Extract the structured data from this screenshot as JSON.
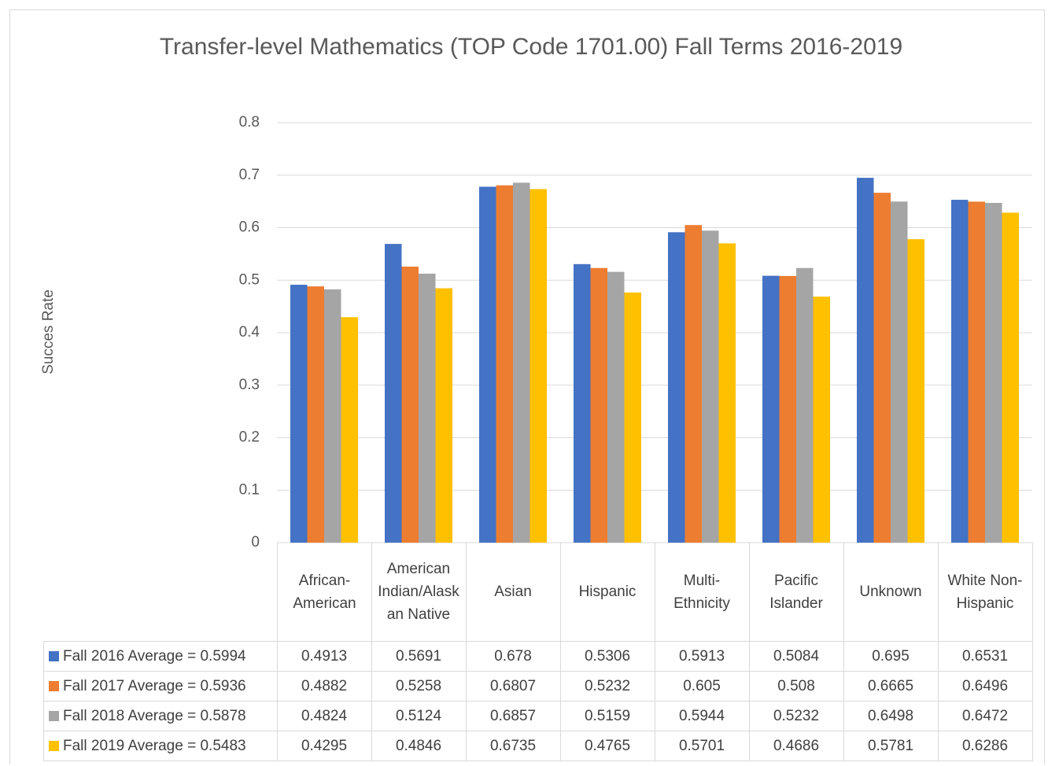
{
  "chart_data": {
    "type": "bar",
    "title": "Transfer-level Mathematics (TOP Code 1701.00) Fall Terms 2016-2019",
    "y_label": "Succes Rate",
    "categories": [
      "African-American",
      "American Indian/Alaskan Native",
      "Asian",
      "Hispanic",
      "Multi-Ethnicity",
      "Pacific Islander",
      "Unknown",
      "White Non-Hispanic"
    ],
    "series": [
      {
        "name": "Fall 2016 Average = 0.5994",
        "color": "#4472c4",
        "values": [
          0.4913,
          0.5691,
          0.678,
          0.5306,
          0.5913,
          0.5084,
          0.695,
          0.6531
        ]
      },
      {
        "name": "Fall 2017 Average = 0.5936",
        "color": "#ed7d31",
        "values": [
          0.4882,
          0.5258,
          0.6807,
          0.5232,
          0.605,
          0.508,
          0.6665,
          0.6496
        ]
      },
      {
        "name": "Fall 2018 Average = 0.5878",
        "color": "#a5a5a5",
        "values": [
          0.4824,
          0.5124,
          0.6857,
          0.5159,
          0.5944,
          0.5232,
          0.6498,
          0.6472
        ]
      },
      {
        "name": "Fall 2019 Average = 0.5483",
        "color": "#ffc000",
        "values": [
          0.4295,
          0.4846,
          0.6735,
          0.4765,
          0.5701,
          0.4686,
          0.5781,
          0.6286
        ]
      }
    ],
    "ylim": [
      0,
      0.8
    ],
    "yticks": [
      0,
      0.1,
      0.2,
      0.3,
      0.4,
      0.5,
      0.6,
      0.7,
      0.8
    ],
    "grid": true,
    "data_table": true
  }
}
